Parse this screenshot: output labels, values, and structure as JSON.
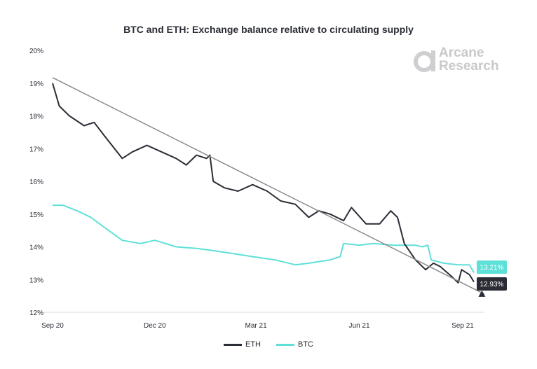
{
  "chart_data": {
    "type": "line",
    "title": "BTC and ETH: Exchange balance relative to circulating supply",
    "watermark": "Arcane Research",
    "xlabel": "",
    "ylabel": "",
    "x_range": [
      "2020-09-01",
      "2021-09-20"
    ],
    "ylim": [
      12,
      20
    ],
    "y_ticks": [
      "12%",
      "13%",
      "14%",
      "15%",
      "16%",
      "17%",
      "18%",
      "19%",
      "20%"
    ],
    "x_ticks": [
      {
        "label": "Sep 20",
        "date": "2020-09-01"
      },
      {
        "label": "Dec 20",
        "date": "2020-12-01"
      },
      {
        "label": "Mar 21",
        "date": "2021-03-01"
      },
      {
        "label": "Jun 21",
        "date": "2021-06-01"
      },
      {
        "label": "Sep 21",
        "date": "2021-09-01"
      }
    ],
    "grid": false,
    "legend_position": "bottom",
    "series": [
      {
        "name": "ETH",
        "color": "#2b2d36",
        "end_label": "12.93%",
        "x": [
          "2020-09-01",
          "2020-09-07",
          "2020-09-16",
          "2020-09-29",
          "2020-10-08",
          "2020-10-17",
          "2020-11-02",
          "2020-11-11",
          "2020-11-24",
          "2020-12-07",
          "2020-12-20",
          "2020-12-29",
          "2021-01-07",
          "2021-01-16",
          "2021-01-19",
          "2021-01-22",
          "2021-02-01",
          "2021-02-13",
          "2021-02-26",
          "2021-03-11",
          "2021-03-23",
          "2021-04-05",
          "2021-04-17",
          "2021-04-26",
          "2021-05-06",
          "2021-05-18",
          "2021-05-25",
          "2021-06-07",
          "2021-06-19",
          "2021-06-29",
          "2021-07-05",
          "2021-07-11",
          "2021-07-21",
          "2021-07-30",
          "2021-08-06",
          "2021-08-12",
          "2021-08-22",
          "2021-08-28",
          "2021-08-31",
          "2021-09-07",
          "2021-09-11"
        ],
        "y": [
          19.0,
          18.3,
          18.0,
          17.7,
          17.8,
          17.4,
          16.7,
          16.9,
          17.1,
          16.9,
          16.7,
          16.5,
          16.8,
          16.7,
          16.8,
          16.0,
          15.8,
          15.7,
          15.9,
          15.7,
          15.4,
          15.3,
          14.9,
          15.1,
          15.0,
          14.8,
          15.2,
          14.7,
          14.7,
          15.1,
          14.9,
          14.1,
          13.6,
          13.3,
          13.5,
          13.4,
          13.1,
          12.9,
          13.3,
          13.15,
          12.93
        ]
      },
      {
        "name": "BTC",
        "color": "#5ee0d8",
        "end_label": "13.21%",
        "x": [
          "2020-09-01",
          "2020-09-10",
          "2020-09-23",
          "2020-10-05",
          "2020-10-17",
          "2020-11-02",
          "2020-11-18",
          "2020-12-01",
          "2020-12-20",
          "2021-01-07",
          "2021-01-19",
          "2021-02-07",
          "2021-02-26",
          "2021-03-18",
          "2021-04-05",
          "2021-04-17",
          "2021-05-06",
          "2021-05-15",
          "2021-05-18",
          "2021-06-01",
          "2021-06-13",
          "2021-07-02",
          "2021-07-21",
          "2021-07-27",
          "2021-08-01",
          "2021-08-04",
          "2021-08-15",
          "2021-08-28",
          "2021-09-07",
          "2021-09-11"
        ],
        "y": [
          15.27,
          15.27,
          15.1,
          14.9,
          14.6,
          14.2,
          14.1,
          14.2,
          14.0,
          13.95,
          13.9,
          13.8,
          13.7,
          13.6,
          13.45,
          13.5,
          13.6,
          13.7,
          14.1,
          14.05,
          14.1,
          14.05,
          14.05,
          14.0,
          14.05,
          13.6,
          13.5,
          13.45,
          13.45,
          13.21
        ]
      }
    ],
    "trendline": {
      "color": "#8a8a8a",
      "x": [
        "2020-09-01",
        "2021-09-20"
      ],
      "y": [
        19.17,
        12.56
      ]
    }
  }
}
